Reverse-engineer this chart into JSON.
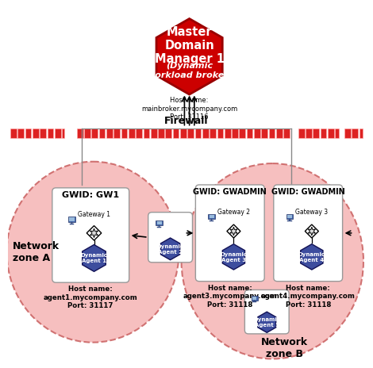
{
  "title_hex": "Master\nDomain\nManager 1",
  "subtitle_hex": "(Dynamic\nworkload broker)",
  "hex_host": "Host name:\nmainbroker.mycompany.com\nPort: 31116",
  "hex_color": "#cc0000",
  "firewall_label": "Firewall",
  "zone_a_label": "Network\nzone A",
  "zone_b_label": "Network\nzone B",
  "zone_color": "#f5b8b8",
  "zone_border": "#cc6666",
  "gwid_gw1": "GWID: GW1",
  "gateway1_label": "Gateway 1",
  "agent1_label": "Dynamic\nAgent 1",
  "agent1_host": "Host name:\nagent1.mycompany.com\nPort: 31117",
  "agent2_label": "Dynamic\nAgent 2",
  "gwid_gwadmin1": "GWID: GWADMIN",
  "gwid_gwadmin2": "GWID: GWADMIN",
  "gateway2_label": "Gateway 2",
  "gateway3_label": "Gateway 3",
  "agent3_label": "Dynamic\nAgent 3",
  "agent3_host": "Host name:\nagent3.mycompany.com\nPort: 31118",
  "agent4_label": "Dynamic\nAgent 4",
  "agent4_host": "Host name:\nagent4.mycompany.com\nPort: 31118",
  "agent5_label": "Dynamic\nAgent 5",
  "agent_hex_color": "#3d4d9e",
  "agent_hex_text": "#ffffff"
}
